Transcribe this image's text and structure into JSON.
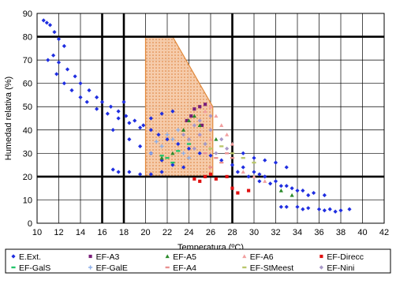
{
  "chart_data": {
    "type": "scatter",
    "xlabel": "Temperatura (ºC)",
    "ylabel": "Humedad relativa (%)",
    "xlim": [
      10,
      42
    ],
    "ylim": [
      0,
      90
    ],
    "x_ticks": [
      10,
      12,
      14,
      16,
      18,
      20,
      22,
      24,
      26,
      28,
      30,
      32,
      34,
      36,
      38,
      40,
      42
    ],
    "y_ticks": [
      0,
      10,
      20,
      30,
      40,
      50,
      60,
      70,
      80,
      90
    ],
    "x_tick_labels": [
      "10",
      "12",
      "14",
      "16",
      "18",
      "20",
      "22",
      "24",
      "26",
      "28",
      "30",
      "32",
      "34",
      "36",
      "38",
      "40",
      "42"
    ],
    "y_tick_labels": [
      "0",
      "10",
      "20",
      "30",
      "40",
      "50",
      "60",
      "70",
      "80",
      "90"
    ],
    "major_lines_x": [
      16,
      18,
      28
    ],
    "major_lines_y": [
      20,
      80
    ],
    "grid": true,
    "legend_position": "bottom",
    "comfort_zone": {
      "polygon": [
        [
          20,
          80
        ],
        [
          22.5,
          80
        ],
        [
          26.2,
          50
        ],
        [
          26.2,
          20
        ],
        [
          20,
          20
        ]
      ],
      "fill": "#f6c9a6",
      "stroke": "#e0893c"
    },
    "series": [
      {
        "name": "E.Ext.",
        "color": "#1f2ee0",
        "marker": "diamond",
        "points": [
          [
            10.6,
            87
          ],
          [
            10.9,
            86
          ],
          [
            11.2,
            85
          ],
          [
            11.6,
            82
          ],
          [
            12.0,
            79
          ],
          [
            12.5,
            76
          ],
          [
            11.5,
            72
          ],
          [
            12.0,
            69
          ],
          [
            12.8,
            66
          ],
          [
            13.5,
            63
          ],
          [
            14.0,
            60
          ],
          [
            14.8,
            57
          ],
          [
            15.5,
            54
          ],
          [
            16.0,
            52
          ],
          [
            16.8,
            50
          ],
          [
            17.5,
            48
          ],
          [
            18.2,
            46
          ],
          [
            19.0,
            44
          ],
          [
            19.8,
            42
          ],
          [
            20.5,
            40
          ],
          [
            21.2,
            38
          ],
          [
            22.0,
            36
          ],
          [
            23.0,
            34
          ],
          [
            24.0,
            32
          ],
          [
            25.0,
            30
          ],
          [
            26.0,
            29
          ],
          [
            27.0,
            27
          ],
          [
            28.0,
            25
          ],
          [
            29.0,
            24
          ],
          [
            30.0,
            22
          ],
          [
            31.0,
            20
          ],
          [
            32.0,
            18
          ],
          [
            33.0,
            16
          ],
          [
            34.0,
            14
          ],
          [
            35.0,
            12
          ],
          [
            11.0,
            70
          ],
          [
            11.8,
            64
          ],
          [
            12.5,
            60
          ],
          [
            13.2,
            57
          ],
          [
            14.0,
            54
          ],
          [
            14.6,
            52
          ],
          [
            15.5,
            49
          ],
          [
            16.5,
            47
          ],
          [
            17.5,
            45
          ],
          [
            18.5,
            43
          ],
          [
            19.5,
            41
          ],
          [
            20.5,
            45
          ],
          [
            21.5,
            47
          ],
          [
            22.5,
            48
          ],
          [
            18.0,
            52
          ],
          [
            17.0,
            40
          ],
          [
            18.5,
            36
          ],
          [
            19.5,
            33
          ],
          [
            20.5,
            30
          ],
          [
            21.5,
            27
          ],
          [
            22.5,
            25
          ],
          [
            23.5,
            24
          ],
          [
            17.0,
            23
          ],
          [
            17.5,
            22
          ],
          [
            18.5,
            22
          ],
          [
            19.5,
            21
          ],
          [
            20.5,
            21
          ],
          [
            21.5,
            22
          ],
          [
            29.0,
            30
          ],
          [
            30.0,
            28
          ],
          [
            31.0,
            27
          ],
          [
            32.0,
            26
          ],
          [
            33.0,
            24
          ],
          [
            30.5,
            18
          ],
          [
            31.5,
            17
          ],
          [
            32.5,
            16
          ],
          [
            33.5,
            15
          ],
          [
            34.5,
            14
          ],
          [
            35.5,
            13
          ],
          [
            36.5,
            12
          ],
          [
            33.0,
            7
          ],
          [
            34.0,
            7
          ],
          [
            35.0,
            6.5
          ],
          [
            36.0,
            6
          ],
          [
            37.0,
            6
          ],
          [
            38.0,
            5.5
          ],
          [
            38.8,
            6
          ],
          [
            37.5,
            5
          ],
          [
            36.5,
            5.5
          ],
          [
            34.5,
            6
          ],
          [
            32.5,
            7
          ],
          [
            29.5,
            20
          ],
          [
            30.5,
            21
          ],
          [
            28.5,
            22
          ]
        ]
      },
      {
        "name": "EF-A3",
        "color": "#7a1f7a",
        "marker": "square",
        "points": [
          [
            24.5,
            49
          ],
          [
            25.0,
            50
          ],
          [
            25.5,
            51
          ],
          [
            23.8,
            44
          ],
          [
            24.2,
            46
          ],
          [
            25.2,
            42
          ]
        ]
      },
      {
        "name": "EF-A5",
        "color": "#2a8a2a",
        "marker": "triangle",
        "points": [
          [
            24.0,
            44
          ],
          [
            24.5,
            46
          ],
          [
            25.0,
            42
          ],
          [
            23.5,
            40
          ],
          [
            22.5,
            30
          ],
          [
            21.5,
            28
          ],
          [
            26.5,
            36
          ],
          [
            33.5,
            12
          ],
          [
            32.5,
            14
          ]
        ]
      },
      {
        "name": "EF-A6",
        "color": "#f2a0a0",
        "marker": "triangle",
        "points": [
          [
            25.5,
            48
          ],
          [
            26.0,
            50
          ],
          [
            26.5,
            46
          ],
          [
            27.0,
            42
          ],
          [
            27.5,
            38
          ],
          [
            28.0,
            34
          ],
          [
            26.0,
            36
          ],
          [
            25.0,
            38
          ],
          [
            29.0,
            22
          ],
          [
            30.0,
            20
          ],
          [
            31.0,
            18
          ]
        ]
      },
      {
        "name": "EF-Direcc",
        "color": "#e01010",
        "marker": "square",
        "points": [
          [
            25.5,
            20
          ],
          [
            26.5,
            19
          ],
          [
            27.5,
            20
          ],
          [
            28.0,
            15
          ],
          [
            28.5,
            13
          ],
          [
            24.5,
            19
          ],
          [
            29.5,
            14
          ],
          [
            25.0,
            18
          ],
          [
            26.0,
            21
          ]
        ]
      },
      {
        "name": "EF-GalS",
        "color": "#22c46a",
        "marker": "dash",
        "points": [
          [
            23.0,
            31
          ],
          [
            22.0,
            28
          ],
          [
            21.5,
            29
          ],
          [
            24.0,
            34
          ],
          [
            22.5,
            26
          ]
        ]
      },
      {
        "name": "EF-GalE",
        "color": "#8fb0e8",
        "marker": "plus",
        "points": [
          [
            21.0,
            35
          ],
          [
            22.0,
            38
          ],
          [
            23.0,
            40
          ],
          [
            21.5,
            33
          ],
          [
            22.5,
            36
          ],
          [
            23.5,
            30
          ],
          [
            20.5,
            30
          ],
          [
            24.0,
            28
          ]
        ]
      },
      {
        "name": "EF-A4",
        "color": "#e89090",
        "marker": "dash",
        "points": [
          [
            25.5,
            30
          ],
          [
            26.5,
            28
          ],
          [
            27.0,
            26
          ],
          [
            26.0,
            24
          ],
          [
            27.5,
            30
          ],
          [
            28.0,
            28
          ]
        ]
      },
      {
        "name": "EF-StMeest",
        "color": "#b9c66a",
        "marker": "dash",
        "points": [
          [
            26.0,
            32
          ],
          [
            27.0,
            33
          ],
          [
            28.0,
            30
          ],
          [
            29.0,
            28
          ],
          [
            30.0,
            26
          ],
          [
            25.5,
            34
          ]
        ]
      },
      {
        "name": "EF-Nini",
        "color": "#a898c8",
        "marker": "diamond",
        "points": [
          [
            24.0,
            36
          ],
          [
            25.0,
            38
          ],
          [
            26.0,
            40
          ],
          [
            24.5,
            32
          ],
          [
            25.5,
            34
          ],
          [
            26.5,
            30
          ],
          [
            23.5,
            38
          ],
          [
            27.0,
            36
          ],
          [
            27.5,
            32
          ],
          [
            25.0,
            44
          ],
          [
            26.0,
            46
          ],
          [
            24.5,
            42
          ]
        ]
      }
    ]
  }
}
